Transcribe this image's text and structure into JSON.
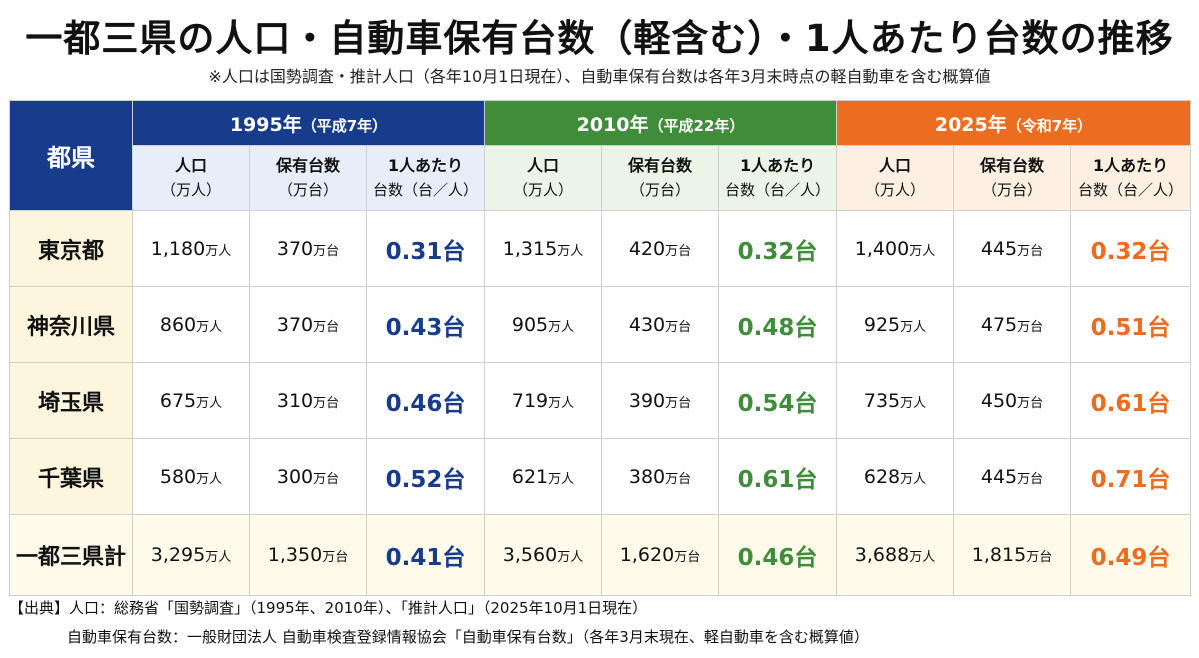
{
  "title": "一都三県の人口・自動車保有台数（軽含む）・1人あたり台数の推移",
  "subtitle": "※人口は国勢調査・推計人口（各年10月1日現在）、自動車保有台数は各年3月末時点の軽自動車を含む概算値",
  "table": {
    "pref_header": "都県",
    "years": [
      {
        "label": "1995年",
        "era": "（平成7年）"
      },
      {
        "label": "2010年",
        "era": "（平成22年）"
      },
      {
        "label": "2025年",
        "era": "（令和7年）"
      }
    ],
    "sub_headers": [
      {
        "l1": "人口",
        "l2": "（万人）"
      },
      {
        "l1": "保有台数",
        "l2": "（万台）"
      },
      {
        "l1": "1人あたり",
        "l2": "台数（台／人）"
      }
    ],
    "units": {
      "pop": "万人",
      "cars": "万台",
      "ratio": "台"
    },
    "rows": [
      {
        "pref": "東京都",
        "cells": [
          "1,180",
          "370",
          "0.31",
          "1,315",
          "420",
          "0.32",
          "1,400",
          "445",
          "0.32"
        ]
      },
      {
        "pref": "神奈川県",
        "cells": [
          "860",
          "370",
          "0.43",
          "905",
          "430",
          "0.48",
          "925",
          "475",
          "0.51"
        ]
      },
      {
        "pref": "埼玉県",
        "cells": [
          "675",
          "310",
          "0.46",
          "719",
          "390",
          "0.54",
          "735",
          "450",
          "0.61"
        ]
      },
      {
        "pref": "千葉県",
        "cells": [
          "580",
          "300",
          "0.52",
          "621",
          "380",
          "0.61",
          "628",
          "445",
          "0.71"
        ]
      },
      {
        "pref": "一都三県計",
        "cells": [
          "3,295",
          "1,350",
          "0.41",
          "3,560",
          "1,620",
          "0.46",
          "3,688",
          "1,815",
          "0.49"
        ]
      }
    ]
  },
  "colors": {
    "y1995": "#173c8c",
    "y2010": "#3f8d3a",
    "y2025": "#ec6d1f"
  },
  "source": {
    "line1": "【出典】人口：総務省「国勢調査」（1995年、2010年）、「推計人口」（2025年10月1日現在）",
    "line2": "自動車保有台数：一般財団法人 自動車検査登録情報協会「自動車保有台数」（各年3月末現在、軽自動車を含む概算値）"
  }
}
